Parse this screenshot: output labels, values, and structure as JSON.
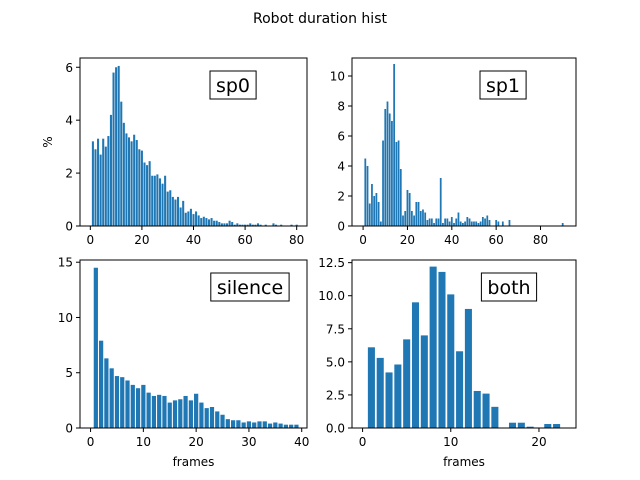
{
  "figure": {
    "title": "Robot duration hist",
    "bar_color": "#1f77b4"
  },
  "chart_data": [
    {
      "type": "bar",
      "label": "sp0",
      "ylabel": "%",
      "xlabel": "",
      "xlim": [
        -4,
        84
      ],
      "ylim": [
        0,
        6.35
      ],
      "xticks": [
        0,
        20,
        40,
        60,
        80
      ],
      "yticks": [
        0,
        2,
        4,
        6
      ],
      "x_start": 1,
      "values": [
        3.2,
        2.9,
        3.3,
        2.7,
        3.3,
        3.0,
        3.4,
        4.2,
        5.8,
        6.0,
        6.05,
        4.7,
        3.9,
        3.5,
        3.35,
        3.2,
        3.45,
        3.25,
        2.9,
        2.85,
        2.4,
        2.3,
        2.45,
        1.9,
        1.9,
        1.95,
        1.8,
        1.6,
        1.9,
        1.3,
        1.35,
        1.1,
        1.0,
        1.1,
        0.7,
        0.95,
        0.5,
        0.55,
        0.65,
        0.45,
        0.55,
        0.4,
        0.3,
        0.35,
        0.3,
        0.25,
        0.3,
        0.2,
        0.2,
        0.15,
        0.1,
        0.1,
        0.1,
        0.2,
        0.15,
        0.05,
        0.1,
        0.05,
        0.05,
        0.05,
        0.05,
        0.1,
        0.05,
        0.05,
        0.1,
        0.05,
        0.0,
        0.05,
        0.0,
        0.0,
        0.1,
        0.05,
        0.0,
        0.05,
        0.0,
        0.0,
        0.0,
        0.05,
        0.0,
        0.05
      ]
    },
    {
      "type": "bar",
      "label": "sp1",
      "ylabel": "",
      "xlabel": "",
      "xlim": [
        -5,
        96
      ],
      "ylim": [
        0,
        11.2
      ],
      "xticks": [
        0,
        20,
        40,
        60,
        80
      ],
      "yticks": [
        0,
        2,
        4,
        6,
        8,
        10
      ],
      "x_start": 1,
      "values": [
        4.5,
        4.0,
        1.5,
        2.8,
        2.0,
        2.2,
        1.6,
        0.3,
        5.7,
        7.8,
        8.3,
        7.5,
        7.0,
        10.8,
        5.6,
        5.7,
        3.8,
        0.7,
        1.0,
        2.4,
        2.2,
        1.0,
        0.7,
        1.6,
        1.6,
        1.0,
        1.1,
        0.9,
        0.4,
        0.5,
        0.5,
        0.2,
        0.5,
        0.5,
        3.2,
        0.2,
        0.5,
        0.5,
        0.3,
        0.6,
        0.2,
        0.5,
        0.9,
        0.3,
        0.2,
        0.3,
        0.6,
        0.5,
        0.3,
        0.3,
        0.3,
        0.2,
        0.3,
        0.6,
        0.5,
        0.7,
        0.4,
        0.0,
        0.0,
        0.4,
        0.3,
        0.0,
        0.3,
        0.0,
        0.0,
        0.4,
        0.0,
        0.0,
        0.0,
        0.0,
        0.0,
        0.0,
        0.0,
        0.0,
        0.0,
        0.0,
        0.0,
        0.0,
        0.0,
        0.0,
        0.0,
        0.0,
        0.0,
        0.0,
        0.0,
        0.0,
        0.0,
        0.0,
        0.0,
        0.2
      ]
    },
    {
      "type": "bar",
      "label": "silence",
      "ylabel": "",
      "xlabel": "frames",
      "xlim": [
        -2,
        41
      ],
      "ylim": [
        0,
        15.2
      ],
      "xticks": [
        0,
        10,
        20,
        30,
        40
      ],
      "yticks": [
        0,
        5,
        10,
        15
      ],
      "x_start": 1,
      "values": [
        14.5,
        7.9,
        6.3,
        5.4,
        4.7,
        4.6,
        4.3,
        3.9,
        3.6,
        3.9,
        3.2,
        2.9,
        3.0,
        2.9,
        2.3,
        2.5,
        2.6,
        2.9,
        2.5,
        3.1,
        2.3,
        1.8,
        1.9,
        1.5,
        1.2,
        0.8,
        0.7,
        0.7,
        0.5,
        0.6,
        0.5,
        0.6,
        0.6,
        0.4,
        0.5,
        0.4,
        0.3,
        0.3,
        0.3
      ]
    },
    {
      "type": "bar",
      "label": "both",
      "ylabel": "",
      "xlabel": "frames",
      "xlim": [
        -1.2,
        24.2
      ],
      "ylim": [
        0,
        12.7
      ],
      "xticks": [
        0,
        10,
        20
      ],
      "yticks": [
        0.0,
        2.5,
        5.0,
        7.5,
        10.0,
        12.5
      ],
      "ytick_decimals": 1,
      "x_start": 1,
      "values": [
        6.1,
        5.3,
        4.2,
        4.8,
        6.7,
        9.5,
        7.0,
        12.2,
        11.8,
        10.1,
        5.8,
        9.0,
        2.8,
        2.6,
        1.6,
        0.0,
        0.4,
        0.4,
        0.1,
        0.0,
        0.3,
        0.3
      ]
    }
  ]
}
